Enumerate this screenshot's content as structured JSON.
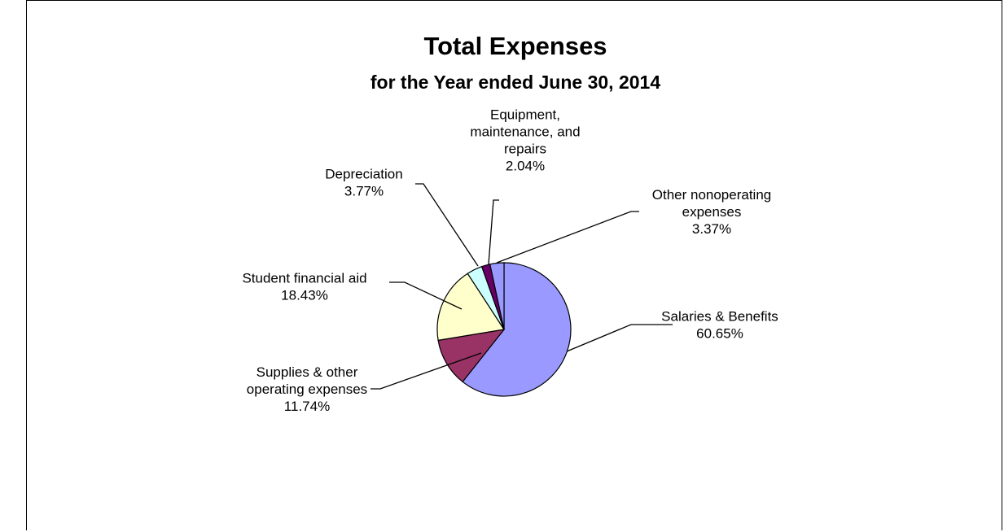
{
  "chart_data": {
    "type": "pie",
    "title": "Total Expenses",
    "subtitle": "for the Year ended June 30, 2014",
    "slices": [
      {
        "label": "Salaries & Benefits",
        "value": 60.65,
        "pct_label": "60.65%",
        "color": "#9999FF"
      },
      {
        "label": "Supplies & other operating expenses",
        "value": 11.74,
        "pct_label": "11.74%",
        "color": "#993366"
      },
      {
        "label": "Student financial aid",
        "value": 18.43,
        "pct_label": "18.43%",
        "color": "#FFFFCC"
      },
      {
        "label": "Depreciation",
        "value": 3.77,
        "pct_label": "3.77%",
        "color": "#CCFFFF"
      },
      {
        "label": "Equipment, maintenance, and repairs",
        "value": 2.04,
        "pct_label": "2.04%",
        "color": "#660066"
      },
      {
        "label": "Other nonoperating expenses",
        "value": 3.37,
        "pct_label": "3.37%",
        "color": "#9999FF"
      }
    ],
    "label_lines": {
      "Salaries & Benefits": [
        "Salaries & Benefits"
      ],
      "Supplies & other operating expenses": [
        "Supplies & other",
        "operating expenses"
      ],
      "Student financial aid": [
        "Student financial aid"
      ],
      "Depreciation": [
        "Depreciation"
      ],
      "Equipment, maintenance, and repairs": [
        "Equipment,",
        "maintenance, and",
        "repairs"
      ],
      "Other nonoperating expenses": [
        "Other nonoperating",
        "expenses"
      ]
    }
  }
}
